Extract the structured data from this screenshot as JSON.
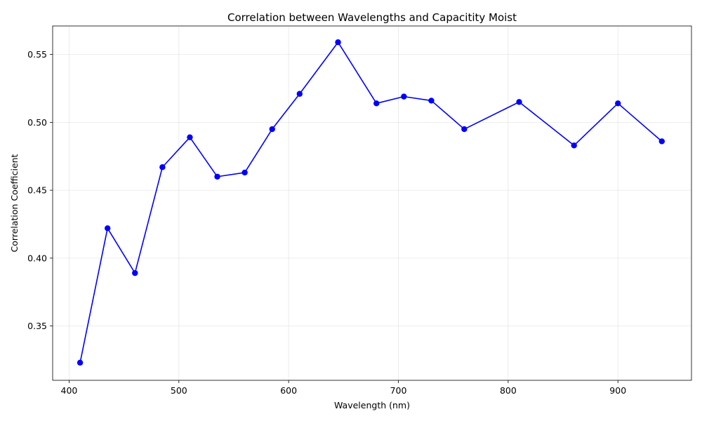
{
  "chart_data": {
    "type": "line",
    "title": "Correlation between Wavelengths and Capacitity Moist",
    "xlabel": "Wavelength (nm)",
    "ylabel": "Correlation Coefficient",
    "xlim": [
      385,
      967
    ],
    "ylim": [
      0.31,
      0.571
    ],
    "xticks": [
      400,
      500,
      600,
      700,
      800,
      900
    ],
    "yticks": [
      0.35,
      0.4,
      0.45,
      0.5,
      0.55
    ],
    "grid": true,
    "series": [
      {
        "color": "#0000ff",
        "marker": "circle",
        "x": [
          410,
          435,
          460,
          485,
          510,
          535,
          560,
          585,
          610,
          645,
          680,
          705,
          730,
          760,
          810,
          860,
          900,
          940
        ],
        "y": [
          0.323,
          0.422,
          0.389,
          0.467,
          0.489,
          0.46,
          0.463,
          0.495,
          0.521,
          0.559,
          0.514,
          0.519,
          0.516,
          0.495,
          0.515,
          0.483,
          0.514,
          0.486
        ]
      }
    ]
  }
}
